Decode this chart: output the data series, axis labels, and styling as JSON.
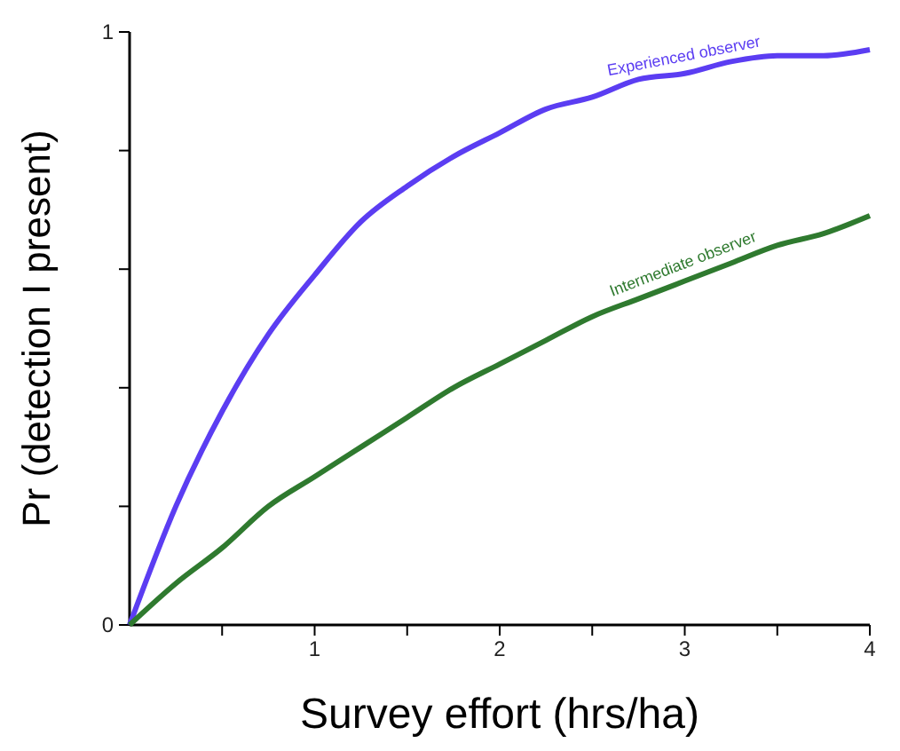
{
  "chart_data": {
    "type": "line",
    "xlabel": "Survey effort (hrs/ha)",
    "ylabel": "Pr (detection I present)",
    "x": [
      0,
      0.25,
      0.5,
      0.75,
      1,
      1.25,
      1.5,
      1.75,
      2,
      2.25,
      2.5,
      2.75,
      3,
      3.25,
      3.5,
      3.75,
      4
    ],
    "series": [
      {
        "name": "Experienced observer",
        "color": "#5b3df2",
        "values": [
          0,
          0.2,
          0.36,
          0.49,
          0.59,
          0.68,
          0.74,
          0.79,
          0.83,
          0.87,
          0.89,
          0.92,
          0.93,
          0.95,
          0.96,
          0.96,
          0.97
        ]
      },
      {
        "name": "Intermediate observer",
        "color": "#2f7a2f",
        "values": [
          0,
          0.07,
          0.13,
          0.2,
          0.25,
          0.3,
          0.35,
          0.4,
          0.44,
          0.48,
          0.52,
          0.55,
          0.58,
          0.61,
          0.64,
          0.66,
          0.69
        ]
      }
    ],
    "xlim": [
      0,
      4
    ],
    "ylim": [
      0,
      1
    ],
    "xticks": [
      {
        "value": 0.5,
        "label": null
      },
      1,
      {
        "value": 1.5,
        "label": null
      },
      2,
      {
        "value": 2.5,
        "label": null
      },
      3,
      {
        "value": 3.5,
        "label": null
      },
      4
    ],
    "yticks": [
      0,
      {
        "value": 0.2,
        "label": null
      },
      {
        "value": 0.4,
        "label": null
      },
      {
        "value": 0.6,
        "label": null
      },
      {
        "value": 0.8,
        "label": null
      },
      1
    ],
    "grid": false,
    "legend": false,
    "marker": "none",
    "line_style": "solid"
  }
}
